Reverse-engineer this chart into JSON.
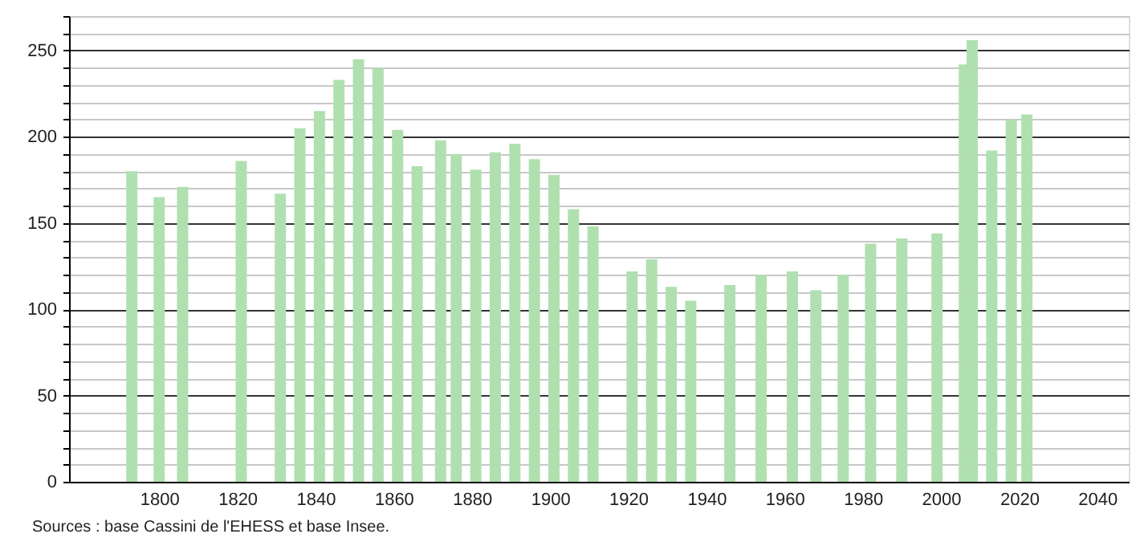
{
  "chart_data": {
    "type": "bar",
    "x": [
      1793,
      1800,
      1806,
      1821,
      1831,
      1836,
      1841,
      1846,
      1851,
      1856,
      1861,
      1866,
      1872,
      1876,
      1881,
      1886,
      1891,
      1896,
      1901,
      1906,
      1911,
      1921,
      1926,
      1931,
      1936,
      1946,
      1954,
      1962,
      1968,
      1975,
      1982,
      1990,
      1999,
      2006,
      2008,
      2013,
      2018,
      2022
    ],
    "values": [
      180,
      165,
      171,
      186,
      167,
      205,
      215,
      233,
      245,
      240,
      204,
      183,
      198,
      190,
      181,
      191,
      196,
      187,
      178,
      158,
      148,
      122,
      129,
      113,
      105,
      114,
      120,
      122,
      111,
      120,
      138,
      141,
      144,
      242,
      256,
      192,
      210,
      213
    ],
    "color": "#b0e0b0",
    "xlim": [
      1779,
      2046
    ],
    "xticks": [
      1800,
      1820,
      1840,
      1860,
      1880,
      1900,
      1920,
      1940,
      1960,
      1980,
      2000,
      2020,
      2040
    ],
    "ylim": [
      0,
      270
    ],
    "yticks": [
      0,
      {
        "value": 10,
        "label": null
      },
      {
        "value": 20,
        "label": null
      },
      {
        "value": 30,
        "label": null
      },
      {
        "value": 40,
        "label": null
      },
      50,
      {
        "value": 60,
        "label": null
      },
      {
        "value": 70,
        "label": null
      },
      {
        "value": 80,
        "label": null
      },
      {
        "value": 90,
        "label": null
      },
      100,
      {
        "value": 110,
        "label": null
      },
      {
        "value": 120,
        "label": null
      },
      {
        "value": 130,
        "label": null
      },
      {
        "value": 140,
        "label": null
      },
      150,
      {
        "value": 160,
        "label": null
      },
      {
        "value": 170,
        "label": null
      },
      {
        "value": 180,
        "label": null
      },
      {
        "value": 190,
        "label": null
      },
      200,
      {
        "value": 210,
        "label": null
      },
      {
        "value": 220,
        "label": null
      },
      {
        "value": 230,
        "label": null
      },
      {
        "value": 240,
        "label": null
      },
      250,
      {
        "value": 260,
        "label": null
      },
      {
        "value": 270,
        "label": null
      }
    ],
    "grid": "y",
    "annotations": [
      "Sources : base Cassini de l'EHESS et base Insee."
    ]
  }
}
